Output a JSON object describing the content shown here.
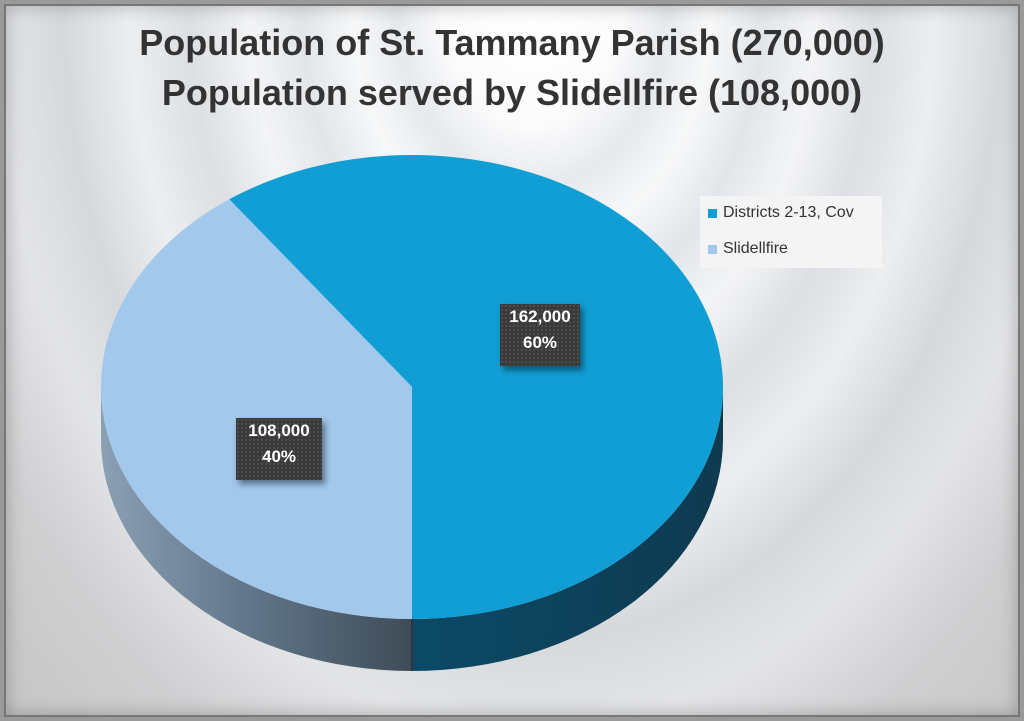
{
  "chart_data": {
    "type": "pie",
    "title": "Population of St. Tammany Parish (270,000)",
    "subtitle": "Population served by Slidellfire (108,000)",
    "series": [
      {
        "name": "Districts 2-13, Cov",
        "value": 162000,
        "label": "162,000",
        "percent": "60%",
        "color": "#119ed4"
      },
      {
        "name": "Slidellfire",
        "value": 108000,
        "label": "108,000",
        "percent": "40%",
        "color": "#a2c8ec"
      }
    ],
    "legend_position": "top-right"
  }
}
